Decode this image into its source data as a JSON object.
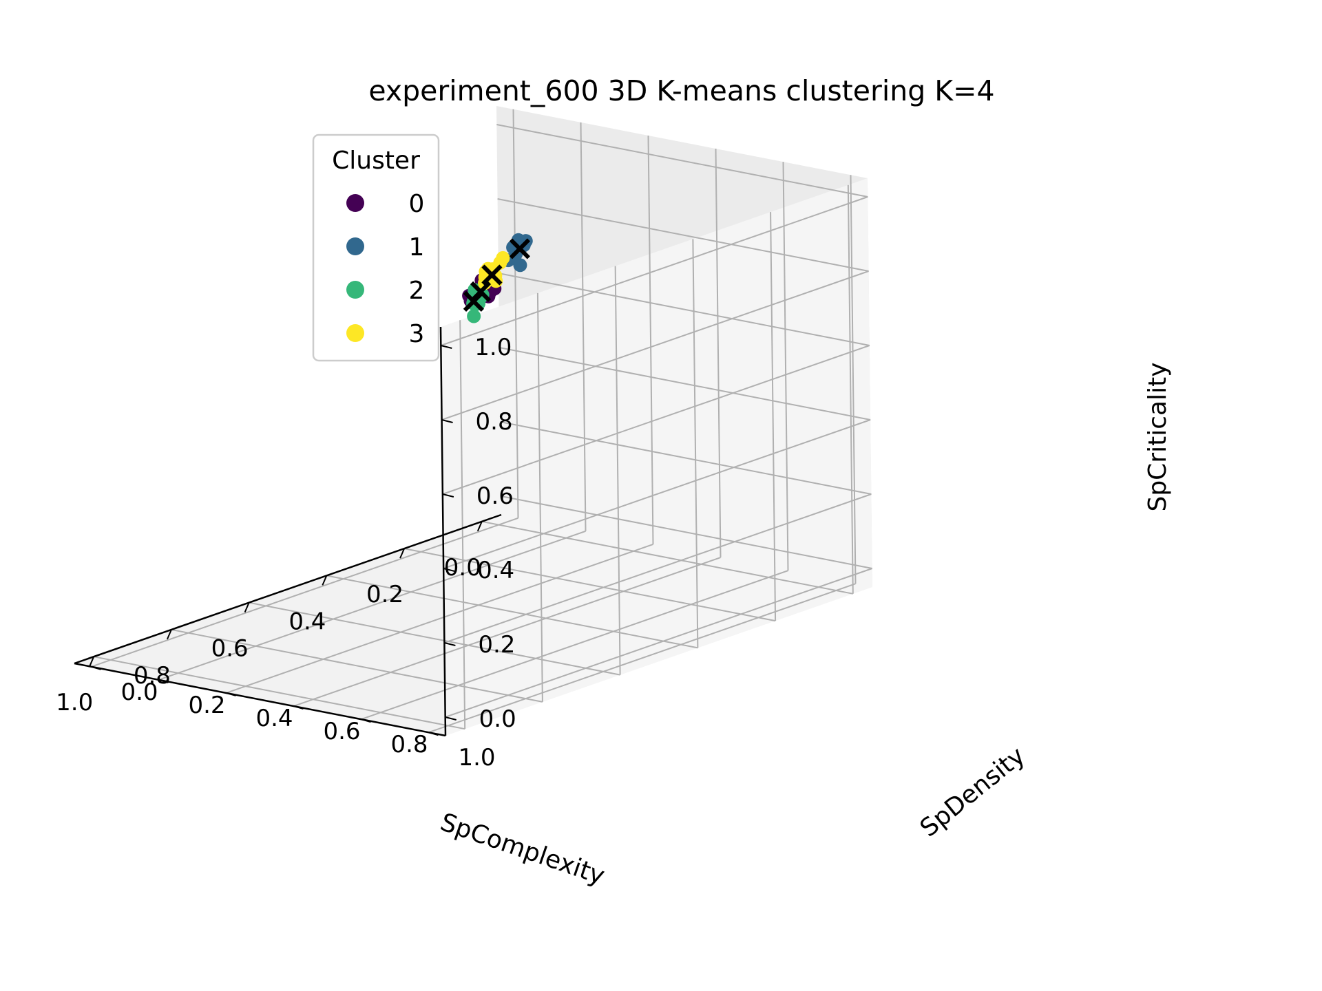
{
  "chart_data": {
    "type": "scatter",
    "title": "experiment_600 3D K-means clustering K=4",
    "xlabel": "SpComplexity",
    "ylabel": "SpDensity",
    "zlabel": "SpCriticality",
    "xlim": [
      0,
      1
    ],
    "ylim": [
      0,
      1
    ],
    "zlim": [
      0,
      1
    ],
    "xticks": [
      "0.0",
      "0.2",
      "0.4",
      "0.6",
      "0.8",
      "1.0"
    ],
    "yticks": [
      "0.0",
      "0.2",
      "0.4",
      "0.6",
      "0.8",
      "1.0"
    ],
    "zticks": [
      "0.0",
      "0.2",
      "0.4",
      "0.6",
      "0.8",
      "1.0"
    ],
    "grid": true,
    "legend": {
      "title": "Cluster",
      "placement": "top-left"
    },
    "colors": {
      "0": "#440154",
      "1": "#31688e",
      "2": "#35b779",
      "3": "#fde725",
      "centroid": "#000000"
    },
    "series": [
      {
        "name": "0",
        "color": "#440154",
        "points": [
          [
            0.64,
            0.7,
            0.95
          ],
          [
            0.66,
            0.72,
            0.96
          ],
          [
            0.67,
            0.74,
            0.95
          ],
          [
            0.65,
            0.73,
            0.93
          ],
          [
            0.68,
            0.71,
            0.94
          ],
          [
            0.69,
            0.75,
            0.97
          ],
          [
            0.63,
            0.69,
            0.94
          ],
          [
            0.66,
            0.76,
            0.96
          ],
          [
            0.7,
            0.73,
            0.95
          ],
          [
            0.67,
            0.7,
            0.92
          ],
          [
            0.68,
            0.77,
            0.96
          ],
          [
            0.65,
            0.71,
            0.97
          ]
        ]
      },
      {
        "name": "1",
        "color": "#31688e",
        "points": [
          [
            0.4,
            0.54,
            0.95
          ],
          [
            0.42,
            0.56,
            0.96
          ],
          [
            0.44,
            0.57,
            0.94
          ],
          [
            0.45,
            0.59,
            0.96
          ],
          [
            0.43,
            0.55,
            0.95
          ],
          [
            0.41,
            0.53,
            0.94
          ],
          [
            0.47,
            0.61,
            0.97
          ],
          [
            0.46,
            0.57,
            0.93
          ],
          [
            0.44,
            0.6,
            0.98
          ],
          [
            0.39,
            0.52,
            0.95
          ],
          [
            0.48,
            0.64,
            0.99
          ],
          [
            0.49,
            0.64,
            0.94
          ]
        ]
      },
      {
        "name": "2",
        "color": "#35b779",
        "points": [
          [
            0.7,
            0.77,
            0.96
          ],
          [
            0.72,
            0.78,
            0.97
          ],
          [
            0.73,
            0.8,
            0.97
          ],
          [
            0.74,
            0.79,
            0.96
          ],
          [
            0.71,
            0.77,
            0.94
          ],
          [
            0.73,
            0.79,
            0.95
          ],
          [
            0.75,
            0.81,
            0.97
          ],
          [
            0.76,
            0.82,
            0.98
          ],
          [
            0.77,
            0.83,
            0.99
          ],
          [
            0.74,
            0.79,
            0.92
          ],
          [
            0.75,
            0.8,
            0.96
          ],
          [
            0.72,
            0.77,
            0.98
          ]
        ]
      },
      {
        "name": "3",
        "color": "#fde725",
        "points": [
          [
            0.56,
            0.64,
            0.95
          ],
          [
            0.57,
            0.65,
            0.96
          ],
          [
            0.58,
            0.67,
            0.95
          ],
          [
            0.59,
            0.66,
            0.97
          ],
          [
            0.57,
            0.66,
            0.93
          ],
          [
            0.55,
            0.65,
            0.97
          ],
          [
            0.58,
            0.64,
            0.94
          ],
          [
            0.6,
            0.68,
            0.96
          ],
          [
            0.56,
            0.67,
            0.99
          ],
          [
            0.59,
            0.65,
            0.93
          ],
          [
            0.61,
            0.69,
            0.97
          ],
          [
            0.57,
            0.63,
            0.95
          ]
        ]
      }
    ],
    "centroids": [
      [
        0.67,
        0.73,
        0.95
      ],
      [
        0.43,
        0.57,
        0.95
      ],
      [
        0.74,
        0.79,
        0.96
      ],
      [
        0.58,
        0.66,
        0.95
      ]
    ]
  }
}
